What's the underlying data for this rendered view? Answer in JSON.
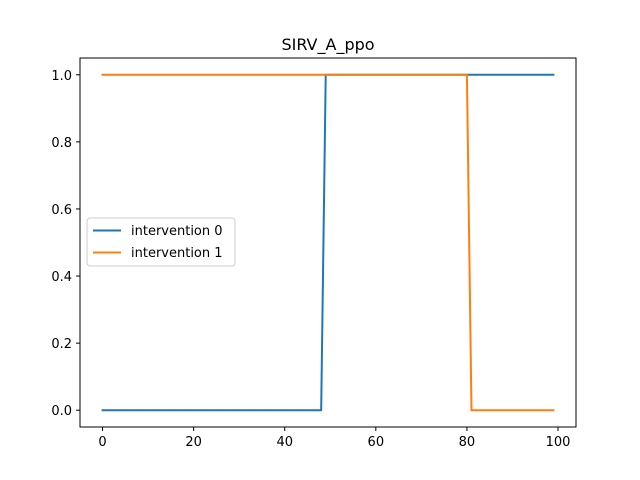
{
  "chart_data": {
    "type": "line",
    "title": "SIRV_A_ppo",
    "xlabel": "",
    "ylabel": "",
    "xlim": [
      -4.95,
      103.95
    ],
    "ylim": [
      -0.05,
      1.05
    ],
    "xticks": [
      0,
      20,
      40,
      60,
      80,
      100
    ],
    "yticks": [
      0.0,
      0.2,
      0.4,
      0.6,
      0.8,
      1.0
    ],
    "xtick_labels": [
      "0",
      "20",
      "40",
      "60",
      "80",
      "100"
    ],
    "ytick_labels": [
      "0.0",
      "0.2",
      "0.4",
      "0.6",
      "0.8",
      "1.0"
    ],
    "legend_position": "center-left",
    "series": [
      {
        "name": "intervention 0",
        "color": "#1f77b4",
        "x": [
          0,
          48,
          49,
          99
        ],
        "y": [
          0,
          0,
          1,
          1
        ]
      },
      {
        "name": "intervention 1",
        "color": "#ff7f0e",
        "x": [
          0,
          80,
          81,
          99
        ],
        "y": [
          1,
          1,
          0,
          0
        ]
      }
    ]
  }
}
